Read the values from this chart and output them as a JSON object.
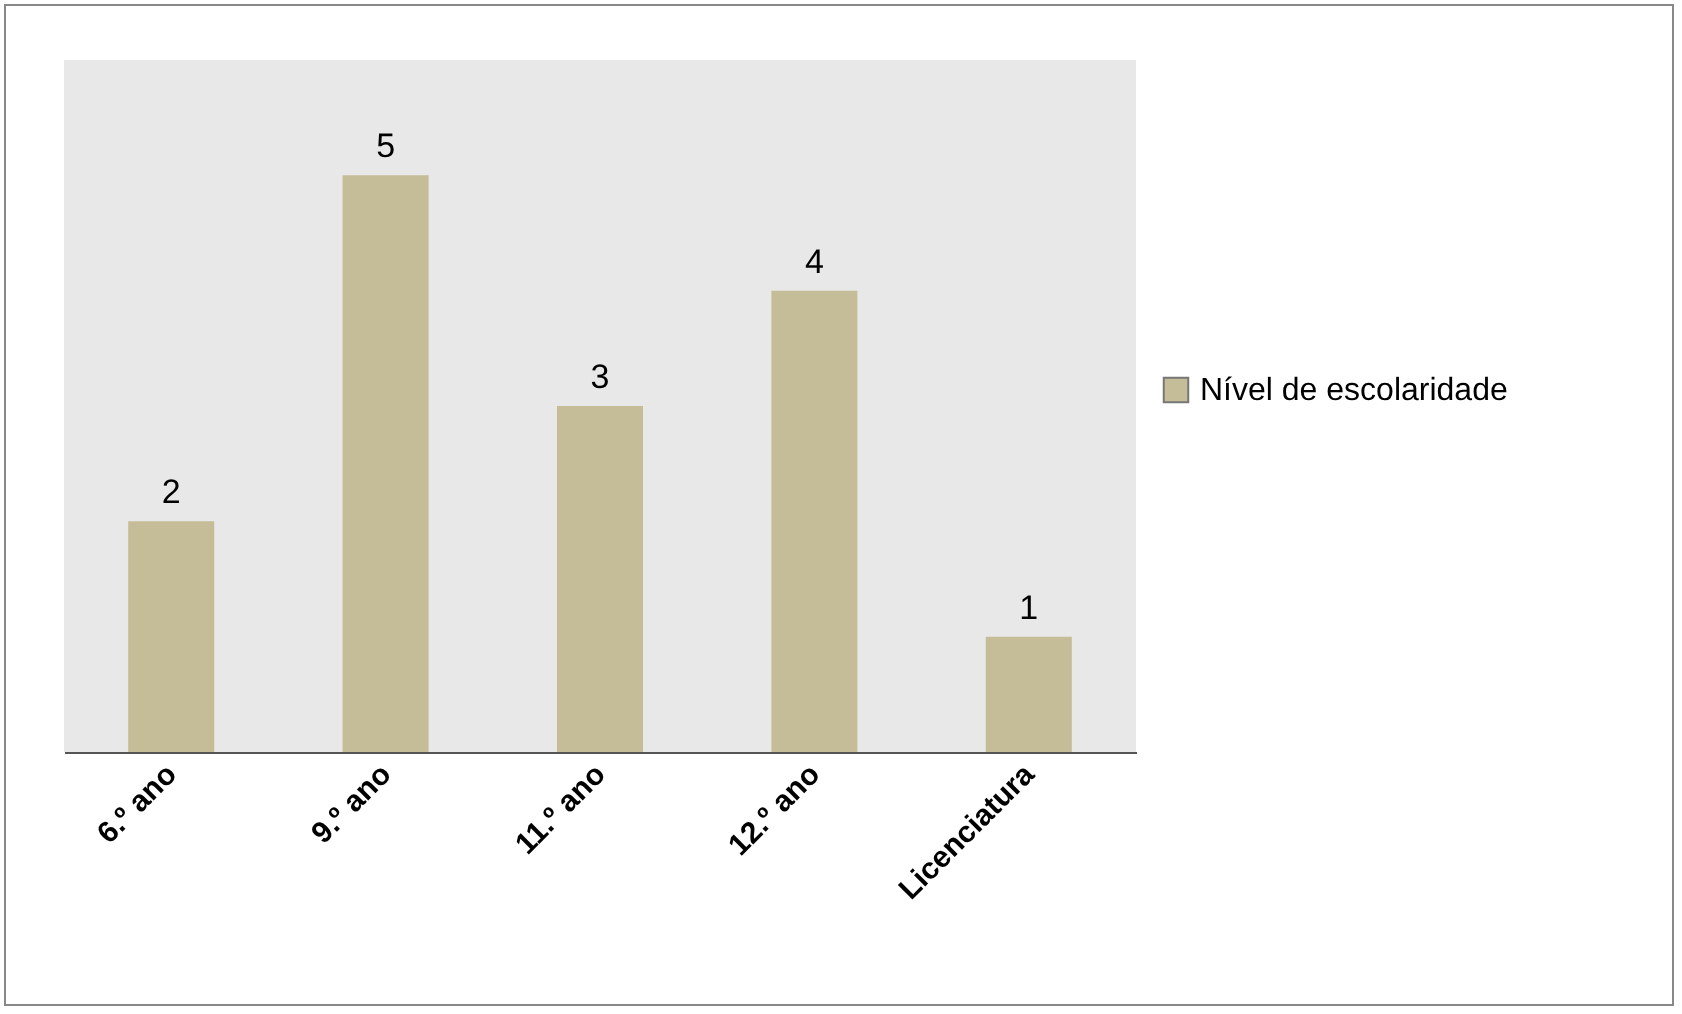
{
  "chart_data": {
    "type": "bar",
    "categories": [
      "6.º ano",
      "9.º ano",
      "11.º ano",
      "12.º ano",
      "Licenciatura"
    ],
    "series": [
      {
        "name": "Nível de escolaridade",
        "color": "#c4bd97",
        "values": [
          2,
          5,
          3,
          4,
          1
        ]
      }
    ],
    "ylim": [
      0,
      6
    ],
    "data_labels": true,
    "legend": "right",
    "grid": false
  }
}
